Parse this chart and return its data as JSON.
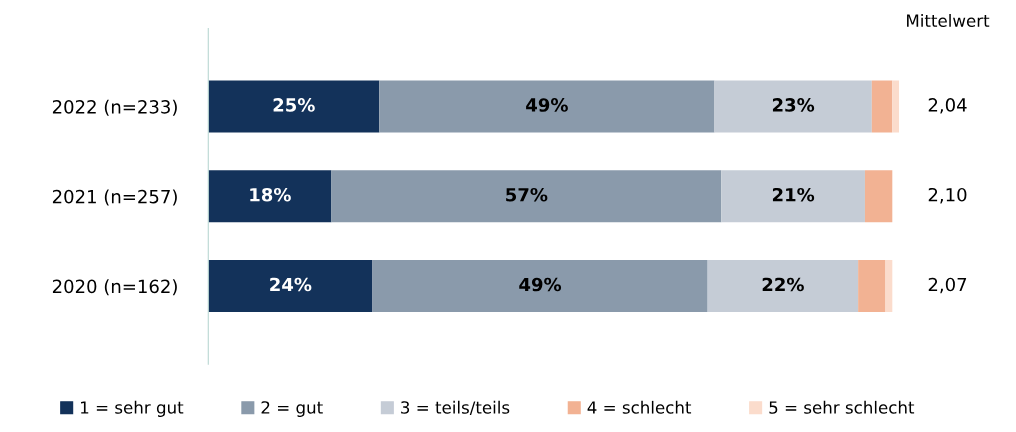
{
  "chart_data": {
    "type": "bar",
    "orientation": "horizontal",
    "stacked": true,
    "categories": [
      "2022 (n=233)",
      "2021 (n=257)",
      "2020 (n=162)"
    ],
    "xlim": [
      0,
      101
    ],
    "tick_labels": "y",
    "grid": false,
    "legend": "bottom",
    "series": [
      {
        "name": "1 = sehr gut",
        "color": "#13325a",
        "values": [
          25,
          18,
          24
        ],
        "value_labels": [
          "25%",
          "18%",
          "24%"
        ]
      },
      {
        "name": "2 = gut",
        "color": "#8a9aab",
        "values": [
          49,
          57,
          49
        ],
        "value_labels": [
          "49%",
          "57%",
          "49%"
        ]
      },
      {
        "name": "3 = teils/teils",
        "color": "#c5ccd6",
        "values": [
          23,
          21,
          22
        ],
        "value_labels": [
          "23%",
          "21%",
          "22%"
        ]
      },
      {
        "name": "4 = schlecht",
        "color": "#f2b293",
        "values": [
          3,
          4,
          4
        ],
        "value_labels": [
          null,
          null,
          null
        ]
      },
      {
        "name": "5 = sehr schlecht",
        "color": "#fbdccc",
        "values": [
          1,
          0,
          1
        ],
        "value_labels": [
          null,
          null,
          null
        ]
      }
    ],
    "annotations": [
      "Mittelwert",
      "2,04",
      "2,10",
      "2,07"
    ]
  }
}
